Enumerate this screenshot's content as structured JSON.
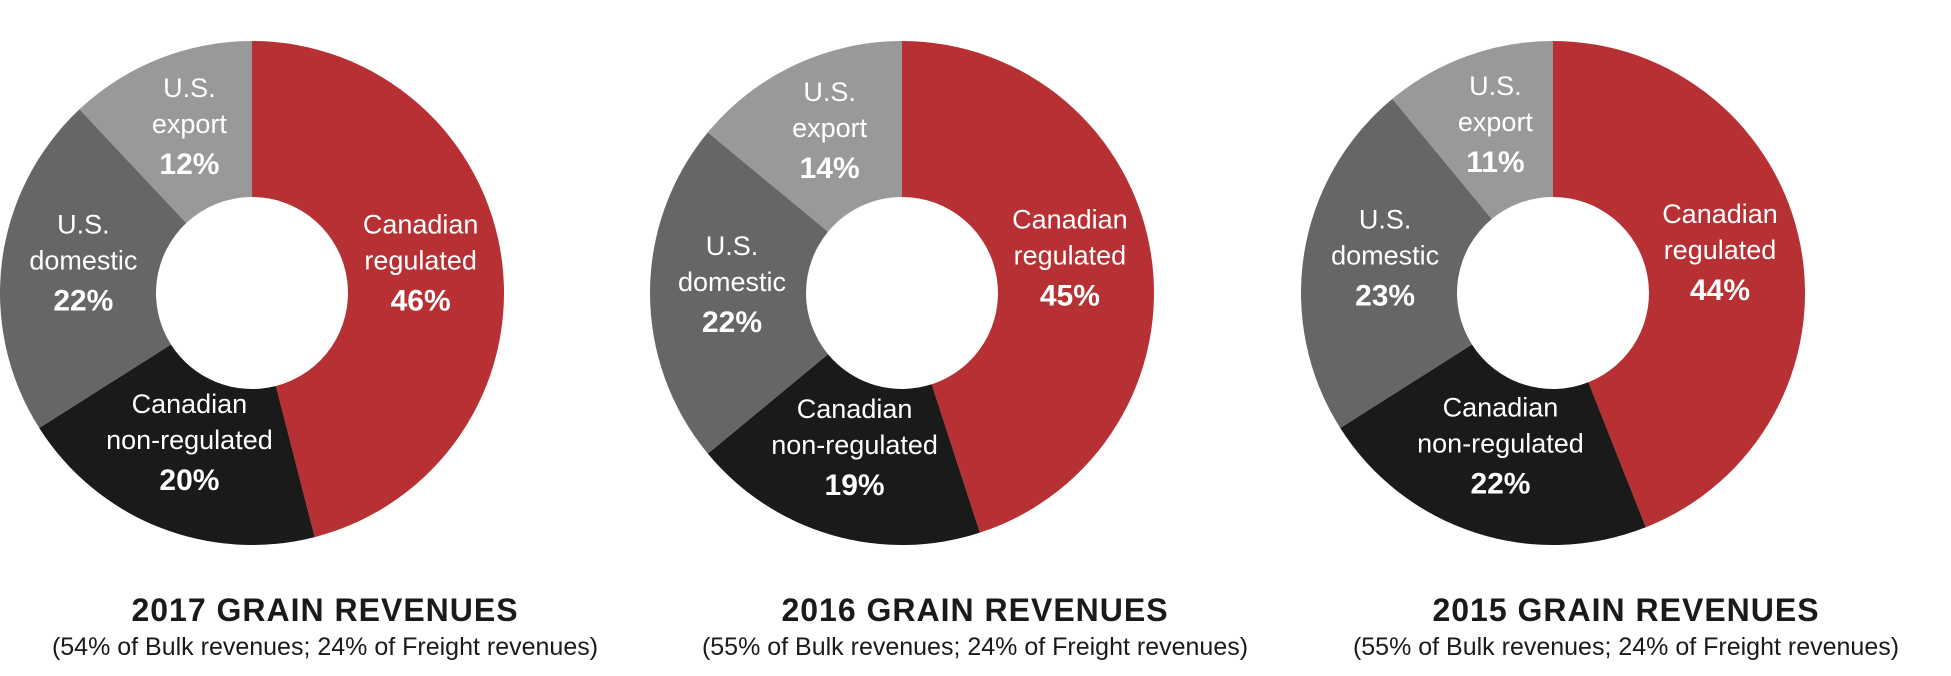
{
  "colors": {
    "canadian_regulated": "#b73033",
    "canadian_non_regulated": "#1b1a1b",
    "us_domestic": "#666666",
    "us_export": "#999999"
  },
  "chart_data": [
    {
      "type": "pie",
      "title": "2017 GRAIN REVENUES",
      "subtitle": "(54% of Bulk revenues; 24% of Freight revenues)",
      "slices": [
        {
          "label_lines": [
            "Canadian",
            "regulated"
          ],
          "value": 46,
          "pct_label": "46%",
          "color_key": "canadian_regulated"
        },
        {
          "label_lines": [
            "Canadian",
            "non-regulated"
          ],
          "value": 20,
          "pct_label": "20%",
          "color_key": "canadian_non_regulated"
        },
        {
          "label_lines": [
            "U.S.",
            "domestic"
          ],
          "value": 22,
          "pct_label": "22%",
          "color_key": "us_domestic"
        },
        {
          "label_lines": [
            "U.S.",
            "export"
          ],
          "value": 12,
          "pct_label": "12%",
          "color_key": "us_export"
        }
      ]
    },
    {
      "type": "pie",
      "title": "2016 GRAIN REVENUES",
      "subtitle": "(55% of Bulk revenues; 24% of Freight revenues)",
      "slices": [
        {
          "label_lines": [
            "Canadian",
            "regulated"
          ],
          "value": 45,
          "pct_label": "45%",
          "color_key": "canadian_regulated"
        },
        {
          "label_lines": [
            "Canadian",
            "non-regulated"
          ],
          "value": 19,
          "pct_label": "19%",
          "color_key": "canadian_non_regulated"
        },
        {
          "label_lines": [
            "U.S.",
            "domestic"
          ],
          "value": 22,
          "pct_label": "22%",
          "color_key": "us_domestic"
        },
        {
          "label_lines": [
            "U.S.",
            "export"
          ],
          "value": 14,
          "pct_label": "14%",
          "color_key": "us_export"
        }
      ]
    },
    {
      "type": "pie",
      "title": "2015 GRAIN REVENUES",
      "subtitle": "(55% of Bulk revenues; 24% of Freight revenues)",
      "slices": [
        {
          "label_lines": [
            "Canadian",
            "regulated"
          ],
          "value": 44,
          "pct_label": "44%",
          "color_key": "canadian_regulated"
        },
        {
          "label_lines": [
            "Canadian",
            "non-regulated"
          ],
          "value": 22,
          "pct_label": "22%",
          "color_key": "canadian_non_regulated"
        },
        {
          "label_lines": [
            "U.S.",
            "domestic"
          ],
          "value": 23,
          "pct_label": "23%",
          "color_key": "us_domestic"
        },
        {
          "label_lines": [
            "U.S.",
            "export"
          ],
          "value": 11,
          "pct_label": "11%",
          "color_key": "us_export"
        }
      ]
    }
  ]
}
